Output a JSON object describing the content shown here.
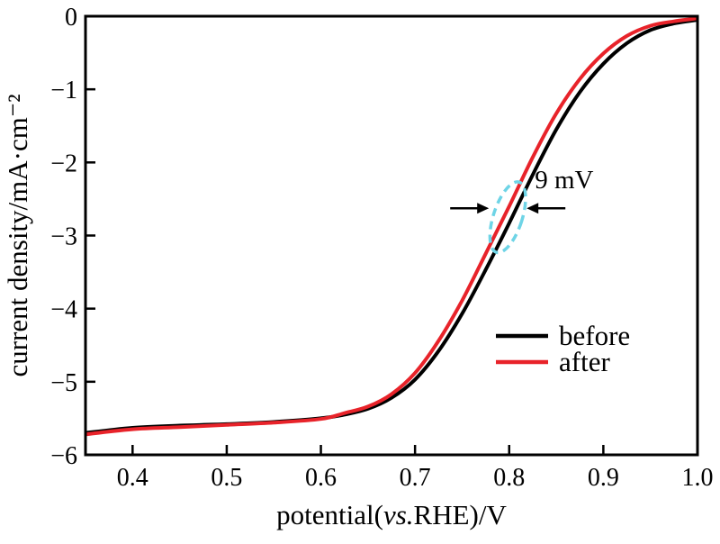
{
  "figure": {
    "background": "#ffffff"
  },
  "chart_data": {
    "type": "line",
    "title": "",
    "xlabel": {
      "pre": "potential(",
      "italic": "vs.",
      "post": "RHE)/V"
    },
    "ylabel": "current density/mA·cm⁻²",
    "xlim": [
      0.35,
      1.0
    ],
    "ylim": [
      -6,
      0
    ],
    "xticks": [
      0.4,
      0.5,
      0.6,
      0.7,
      0.8,
      0.9,
      1.0
    ],
    "xtick_labels": [
      "0.4",
      "0.5",
      "0.6",
      "0.7",
      "0.8",
      "0.9",
      "1.0"
    ],
    "yticks": [
      0,
      -1,
      -2,
      -3,
      -4,
      -5,
      -6
    ],
    "ytick_labels": [
      "0",
      "−1",
      "−2",
      "−3",
      "−4",
      "−5",
      "−6"
    ],
    "grid": false,
    "legend_position": "inside-right-middle",
    "series": [
      {
        "name": "before",
        "color": "#000000",
        "x": [
          0.35,
          0.4,
          0.45,
          0.5,
          0.55,
          0.6,
          0.625,
          0.65,
          0.675,
          0.7,
          0.725,
          0.75,
          0.775,
          0.8,
          0.825,
          0.85,
          0.875,
          0.9,
          0.925,
          0.95,
          0.975,
          1.0
        ],
        "y": [
          -5.7,
          -5.63,
          -5.6,
          -5.58,
          -5.55,
          -5.5,
          -5.45,
          -5.37,
          -5.22,
          -4.97,
          -4.58,
          -4.07,
          -3.47,
          -2.83,
          -2.17,
          -1.55,
          -1.04,
          -0.65,
          -0.37,
          -0.19,
          -0.1,
          -0.05
        ]
      },
      {
        "name": "after",
        "color": "#e8232a",
        "x": [
          0.35,
          0.4,
          0.45,
          0.5,
          0.55,
          0.6,
          0.625,
          0.65,
          0.675,
          0.7,
          0.725,
          0.75,
          0.775,
          0.8,
          0.825,
          0.85,
          0.875,
          0.9,
          0.925,
          0.95,
          0.975,
          1.0
        ],
        "y": [
          -5.72,
          -5.65,
          -5.62,
          -5.59,
          -5.56,
          -5.51,
          -5.43,
          -5.34,
          -5.17,
          -4.88,
          -4.44,
          -3.89,
          -3.25,
          -2.6,
          -1.93,
          -1.33,
          -0.86,
          -0.51,
          -0.27,
          -0.13,
          -0.07,
          -0.03
        ]
      }
    ],
    "annotation": {
      "text": "9 mV",
      "highlight_color": "#6ed4e6",
      "ellipse_center": {
        "x": 0.7985,
        "y": -2.75
      }
    }
  }
}
